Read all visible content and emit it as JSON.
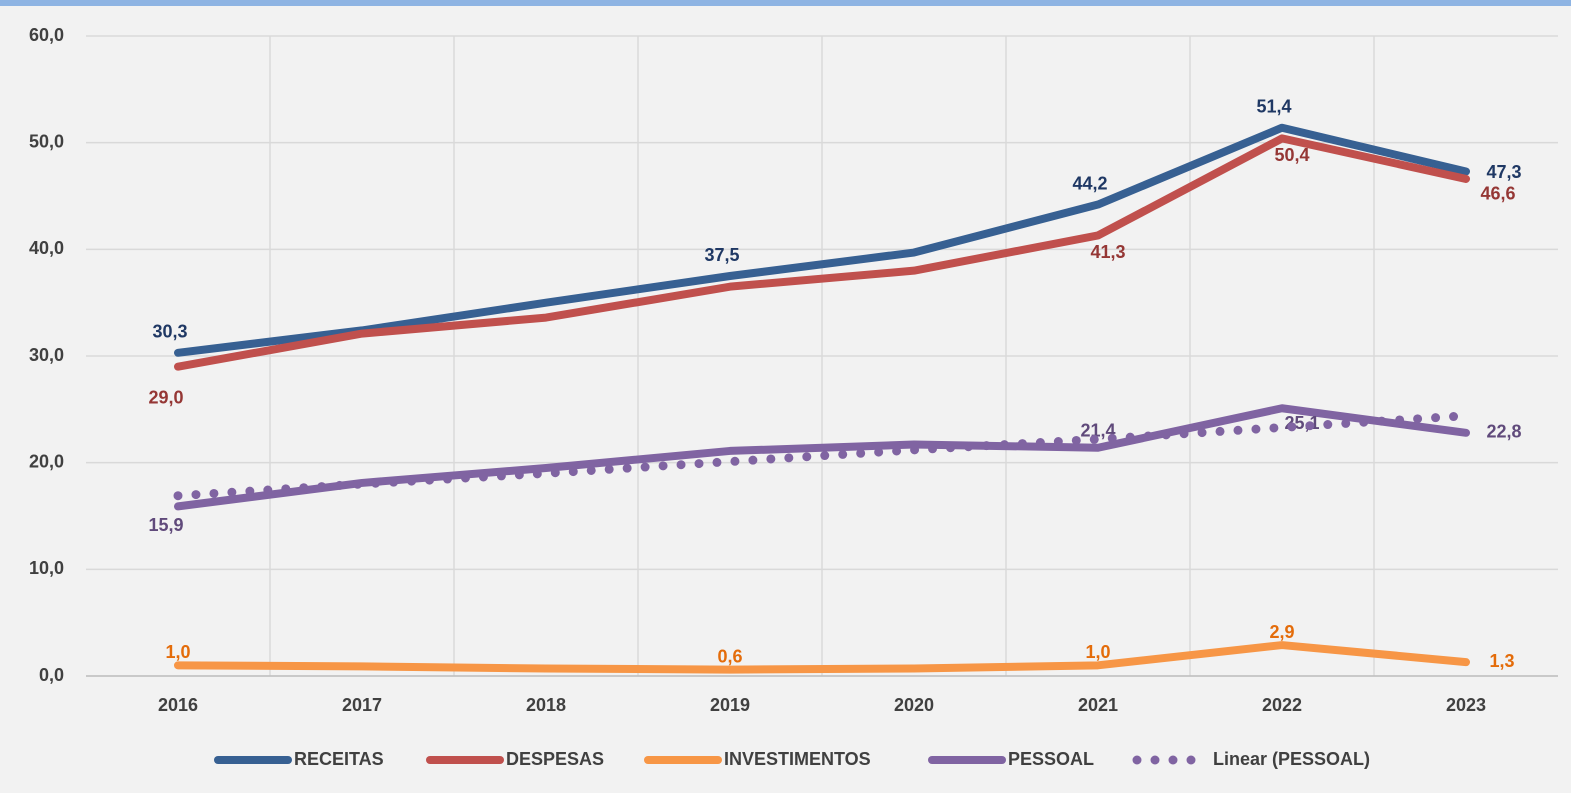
{
  "chart_data": {
    "type": "line",
    "categories": [
      "2016",
      "2017",
      "2018",
      "2019",
      "2020",
      "2021",
      "2022",
      "2023"
    ],
    "ylim": [
      0,
      60
    ],
    "yticks": [
      {
        "value": 0,
        "label": "0,0"
      },
      {
        "value": 10,
        "label": "10,0"
      },
      {
        "value": 20,
        "label": "20,0"
      },
      {
        "value": 30,
        "label": "30,0"
      },
      {
        "value": 40,
        "label": "40,0"
      },
      {
        "value": 50,
        "label": "50,0"
      },
      {
        "value": 60,
        "label": "60,0"
      }
    ],
    "grid": true,
    "legend": "bottom",
    "series": [
      {
        "name": "RECEITAS",
        "color": "#376092",
        "label_color": "#1f3864",
        "values": [
          30.3,
          32.4,
          35.0,
          37.5,
          39.7,
          44.2,
          51.4,
          47.3
        ],
        "value_labels": [
          "30,3",
          null,
          null,
          "37,5",
          null,
          "44,2",
          "51,4",
          "47,3"
        ]
      },
      {
        "name": "DESPESAS",
        "color": "#c0504d",
        "label_color": "#953735",
        "values": [
          29.0,
          32.1,
          33.6,
          36.5,
          38.0,
          41.3,
          50.4,
          46.6
        ],
        "value_labels": [
          "29,0",
          null,
          null,
          null,
          null,
          "41,3",
          "50,4",
          "46,6"
        ]
      },
      {
        "name": "INVESTIMENTOS",
        "color": "#f79646",
        "label_color": "#e46c0a",
        "values": [
          1.0,
          0.9,
          0.7,
          0.6,
          0.7,
          1.0,
          2.9,
          1.3
        ],
        "value_labels": [
          "1,0",
          null,
          null,
          "0,6",
          null,
          "1,0",
          "2,9",
          "1,3"
        ]
      },
      {
        "name": "PESSOAL",
        "color": "#8064a2",
        "label_color": "#604a7b",
        "values": [
          15.9,
          18.1,
          19.5,
          21.1,
          21.7,
          21.4,
          25.1,
          22.8
        ],
        "value_labels": [
          "15,9",
          null,
          null,
          null,
          null,
          "21,4",
          "25,1",
          "22,8"
        ]
      },
      {
        "name": "Linear (PESSOAL)",
        "color": "#8064a2",
        "dotted": true,
        "values": [
          16.9,
          18.0,
          19.0,
          20.1,
          21.2,
          22.2,
          23.3,
          24.4
        ]
      }
    ]
  }
}
